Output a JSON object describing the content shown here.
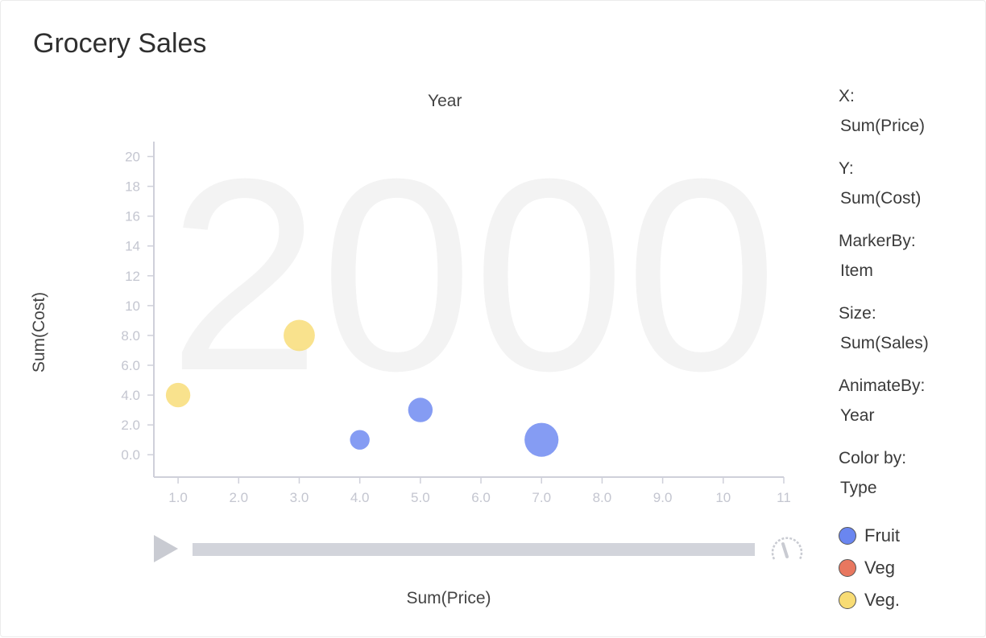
{
  "title": "Grocery Sales",
  "animate_label": "Year",
  "encodings": [
    {
      "label": "X:",
      "value": "Sum(Price)"
    },
    {
      "label": "Y:",
      "value": "Sum(Cost)"
    },
    {
      "label": "MarkerBy:",
      "value": "Item"
    },
    {
      "label": "Size:",
      "value": "Sum(Sales)"
    },
    {
      "label": "AnimateBy:",
      "value": "Year"
    },
    {
      "label": "Color by:",
      "value": "Type"
    }
  ],
  "legend": [
    {
      "name": "Fruit",
      "color": "#6a86f0"
    },
    {
      "name": "Veg",
      "color": "#e8775f"
    },
    {
      "name": "Veg.",
      "color": "#f8dc74"
    }
  ],
  "controls": {
    "play_icon": "play-icon",
    "speed_icon": "speedometer-icon"
  },
  "chart_data": {
    "type": "scatter",
    "subtype": "bubble",
    "title": "Grocery Sales",
    "watermark": "2000",
    "xlabel": "Sum(Price)",
    "ylabel": "Sum(Cost)",
    "xlim": [
      0.6,
      11
    ],
    "ylim": [
      -1.5,
      21
    ],
    "x_ticks": [
      1,
      2,
      3,
      4,
      5,
      6,
      7,
      8,
      9,
      10,
      11
    ],
    "x_tick_labels": [
      "1.0",
      "2.0",
      "3.0",
      "4.0",
      "5.0",
      "6.0",
      "7.0",
      "8.0",
      "9.0",
      "10",
      "11"
    ],
    "y_ticks": [
      0,
      2,
      4,
      6,
      8,
      10,
      12,
      14,
      16,
      18,
      20
    ],
    "y_tick_labels": [
      "0.0",
      "2.0",
      "4.0",
      "6.0",
      "8.0",
      "10",
      "12",
      "14",
      "16",
      "18",
      "20"
    ],
    "grid": false,
    "legend_position": "right",
    "points": [
      {
        "x": 1,
        "y": 4,
        "size": 2,
        "type": "Veg."
      },
      {
        "x": 3,
        "y": 8,
        "size": 4,
        "type": "Veg."
      },
      {
        "x": 4,
        "y": 1,
        "size": 1,
        "type": "Fruit"
      },
      {
        "x": 5,
        "y": 3,
        "size": 2,
        "type": "Fruit"
      },
      {
        "x": 7,
        "y": 1,
        "size": 5,
        "type": "Fruit"
      }
    ]
  }
}
